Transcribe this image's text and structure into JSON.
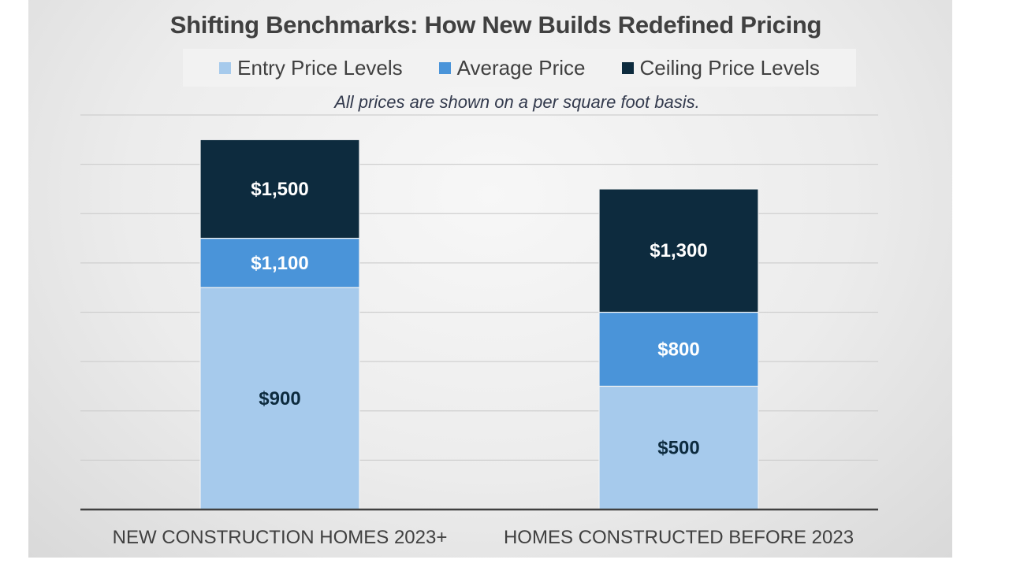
{
  "chart_data": {
    "type": "bar",
    "stacked": true,
    "title": "Shifting Benchmarks: How New Builds Redefined Pricing",
    "subtitle": "All prices are shown on a per square foot basis.",
    "categories": [
      "NEW CONSTRUCTION HOMES 2023+",
      "HOMES CONSTRUCTED BEFORE 2023"
    ],
    "series": [
      {
        "name": "Entry Price Levels",
        "color": "#a6caec",
        "label_color": "#0d2b3e",
        "values": [
          900,
          500
        ],
        "labels": [
          "$900",
          "$500"
        ]
      },
      {
        "name": "Average Price",
        "color": "#4a94d9",
        "label_color": "#ffffff",
        "values": [
          200,
          300
        ],
        "labels": [
          "$1,100",
          "$800"
        ]
      },
      {
        "name": "Ceiling Price Levels",
        "color": "#0d2b3e",
        "label_color": "#ffffff",
        "values": [
          400,
          500
        ],
        "labels": [
          "$1,500",
          "$1,300"
        ]
      }
    ],
    "ylim": [
      0,
      1600
    ],
    "grid": true,
    "legend_position": "top"
  }
}
